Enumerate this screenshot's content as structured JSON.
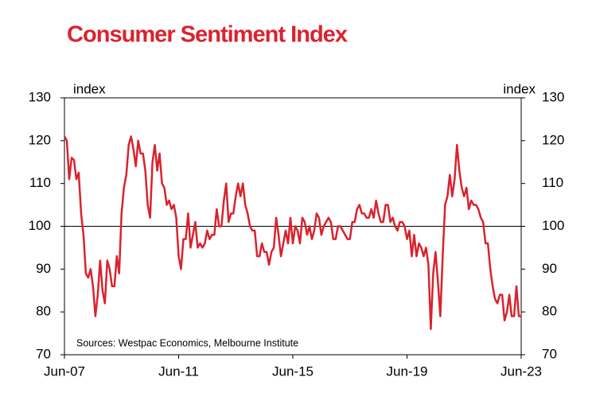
{
  "chart_data": {
    "type": "line",
    "title": "Consumer Sentiment Index",
    "ylabel": "index",
    "y2label": "index",
    "annotation": "Sources: Westpac Economics, Melbourne Institute",
    "categories": [
      "Jun-07",
      null,
      null,
      null,
      null,
      null,
      null,
      null,
      null,
      null,
      null,
      null,
      null,
      null,
      null,
      null,
      null,
      null,
      null,
      null,
      null,
      null,
      null,
      null,
      null,
      null,
      null,
      null,
      null,
      null,
      null,
      null,
      null,
      null,
      null,
      null,
      null,
      null,
      null,
      null,
      null,
      null,
      null,
      null,
      null,
      null,
      null,
      null,
      "Jun-11",
      null,
      null,
      null,
      null,
      null,
      null,
      null,
      null,
      null,
      null,
      null,
      null,
      null,
      null,
      null,
      null,
      null,
      null,
      null,
      null,
      null,
      null,
      null,
      null,
      null,
      null,
      null,
      null,
      null,
      null,
      null,
      null,
      null,
      null,
      null,
      null,
      null,
      null,
      null,
      null,
      null,
      null,
      null,
      null,
      null,
      null,
      null,
      "Jun-15",
      null,
      null,
      null,
      null,
      null,
      null,
      null,
      null,
      null,
      null,
      null,
      null,
      null,
      null,
      null,
      null,
      null,
      null,
      null,
      null,
      null,
      null,
      null,
      null,
      null,
      null,
      null,
      null,
      null,
      null,
      null,
      null,
      null,
      null,
      null,
      null,
      null,
      null,
      null,
      null,
      null,
      null,
      null,
      null,
      null,
      null,
      null,
      "Jun-19",
      null,
      null,
      null,
      null,
      null,
      null,
      null,
      null,
      null,
      null,
      null,
      null,
      null,
      null,
      null,
      null,
      null,
      null,
      null,
      null,
      null,
      null,
      null,
      null,
      null,
      null,
      null,
      null,
      null,
      null,
      null,
      null,
      null,
      null,
      null,
      null,
      null,
      null,
      null,
      null,
      null,
      null,
      null,
      null,
      null,
      null,
      null,
      "Jun-23"
    ],
    "series": [
      {
        "color": "#d9232e",
        "values": [
          121,
          120,
          111,
          116,
          115.5,
          111,
          112.5,
          103,
          98,
          89,
          88,
          90,
          86,
          79,
          84,
          92,
          85,
          82,
          92,
          90,
          86,
          86,
          93,
          89,
          103,
          109,
          112,
          119,
          121,
          118,
          114,
          120,
          117,
          117,
          113,
          105,
          102,
          115,
          119,
          113,
          117,
          110,
          109,
          105,
          106,
          104,
          105,
          102,
          93,
          90,
          97,
          97,
          103,
          95,
          98,
          101,
          95,
          96,
          95,
          96,
          99,
          97,
          98,
          98,
          104,
          100,
          100,
          106,
          110,
          101,
          103,
          103,
          107,
          110,
          107,
          110,
          105,
          103,
          100,
          99,
          99,
          93,
          93,
          96,
          94,
          94,
          91,
          94,
          95,
          102,
          98,
          93,
          96,
          99,
          96,
          102,
          96,
          100,
          99,
          96,
          102,
          101,
          98,
          100,
          97,
          99,
          103,
          102,
          98,
          100,
          101,
          102,
          101,
          97,
          97,
          100,
          100,
          99,
          98,
          97,
          97,
          101,
          101,
          104,
          105,
          103,
          103,
          102,
          102,
          104,
          102,
          106,
          103,
          101,
          101,
          105,
          105,
          101,
          102,
          100,
          99,
          101,
          101,
          100,
          97,
          99,
          93,
          98,
          93,
          96,
          95,
          93,
          95,
          91,
          76,
          89,
          94,
          87,
          79,
          93,
          105,
          107,
          112,
          107,
          111,
          119,
          113,
          109,
          107,
          109,
          104,
          106,
          105,
          105,
          104,
          102,
          101,
          96,
          96,
          90,
          86,
          83,
          82,
          84,
          84,
          78,
          80,
          84,
          79,
          79,
          86,
          79,
          79
        ]
      }
    ],
    "ylim": [
      70,
      130
    ],
    "yticks": [
      70,
      80,
      90,
      100,
      110,
      120,
      130
    ],
    "y2lim": [
      70,
      130
    ],
    "y2ticks": [
      70,
      80,
      90,
      100,
      110,
      120,
      130
    ],
    "reference_line": 100
  }
}
